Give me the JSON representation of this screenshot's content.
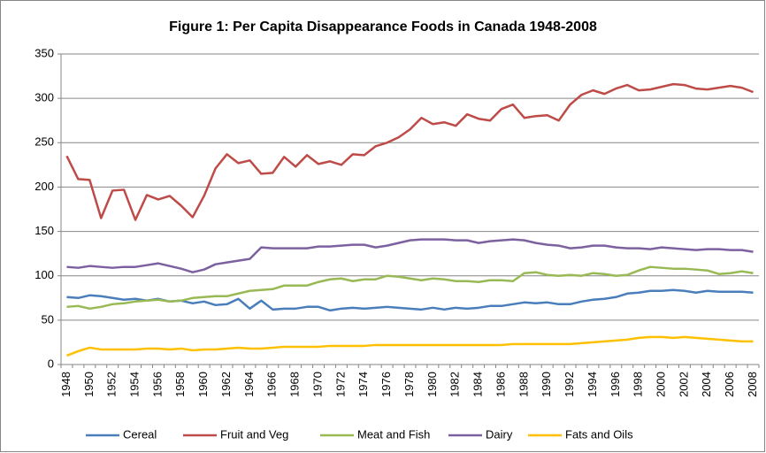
{
  "chart_data": {
    "type": "line",
    "title": "Figure 1: Per Capita Disappearance Foods in Canada 1948-2008",
    "categories": [
      "1948",
      null,
      "1950",
      null,
      "1952",
      null,
      "1954",
      null,
      "1956",
      null,
      "1958",
      null,
      "1960",
      null,
      "1962",
      null,
      "1964",
      null,
      "1966",
      null,
      "1968",
      null,
      "1970",
      null,
      "1972",
      null,
      "1974",
      null,
      "1976",
      null,
      "1978",
      null,
      "1980",
      null,
      "1982",
      null,
      "1984",
      null,
      "1986",
      null,
      "1988",
      null,
      "1990",
      null,
      "1992",
      null,
      "1994",
      null,
      "1996",
      null,
      "1998",
      null,
      "2000",
      null,
      "2002",
      null,
      "2004",
      null,
      "2006",
      null,
      "2008"
    ],
    "series": [
      {
        "name": "Cereal",
        "color": "#4a7ebb",
        "values": [
          76,
          75,
          78,
          77,
          75,
          73,
          74,
          72,
          74,
          71,
          72,
          69,
          71,
          67,
          68,
          74,
          63,
          72,
          62,
          63,
          63,
          65,
          65,
          61,
          63,
          64,
          63,
          64,
          65,
          64,
          63,
          62,
          64,
          62,
          64,
          63,
          64,
          66,
          66,
          68,
          70,
          69,
          70,
          68,
          68,
          71,
          73,
          74,
          76,
          80,
          81,
          83,
          83,
          84,
          83,
          81,
          83,
          82,
          82,
          82,
          81
        ]
      },
      {
        "name": "Fruit and Veg",
        "color": "#be4b48",
        "values": [
          235,
          209,
          208,
          165,
          196,
          197,
          163,
          191,
          186,
          190,
          179,
          166,
          190,
          221,
          237,
          227,
          230,
          215,
          216,
          234,
          223,
          236,
          226,
          229,
          225,
          237,
          236,
          246,
          250,
          256,
          265,
          278,
          271,
          273,
          269,
          282,
          277,
          275,
          288,
          293,
          278,
          280,
          281,
          275,
          293,
          304,
          309,
          305,
          311,
          315,
          309,
          310,
          313,
          316,
          315,
          311,
          310,
          312,
          314,
          312,
          307
        ]
      },
      {
        "name": "Meat and Fish",
        "color": "#98b954",
        "values": [
          65,
          66,
          63,
          65,
          68,
          69,
          71,
          72,
          73,
          71,
          72,
          75,
          76,
          77,
          77,
          80,
          83,
          84,
          85,
          89,
          89,
          89,
          93,
          96,
          97,
          94,
          96,
          96,
          100,
          99,
          97,
          95,
          97,
          96,
          94,
          94,
          93,
          95,
          95,
          94,
          103,
          104,
          101,
          100,
          101,
          100,
          103,
          102,
          100,
          101,
          106,
          110,
          109,
          108,
          108,
          107,
          106,
          102,
          103,
          105,
          103
        ]
      },
      {
        "name": "Dairy",
        "color": "#7d60a0",
        "values": [
          110,
          109,
          111,
          110,
          109,
          110,
          110,
          112,
          114,
          111,
          108,
          104,
          107,
          113,
          115,
          117,
          119,
          132,
          131,
          131,
          131,
          131,
          133,
          133,
          134,
          135,
          135,
          132,
          134,
          137,
          140,
          141,
          141,
          141,
          140,
          140,
          137,
          139,
          140,
          141,
          140,
          137,
          135,
          134,
          131,
          132,
          134,
          134,
          132,
          131,
          131,
          130,
          132,
          131,
          130,
          129,
          130,
          130,
          129,
          129,
          127
        ]
      },
      {
        "name": "Fats and Oils",
        "color": "#ffc000",
        "values": [
          10,
          15,
          19,
          17,
          17,
          17,
          17,
          18,
          18,
          17,
          18,
          16,
          17,
          17,
          18,
          19,
          18,
          18,
          19,
          20,
          20,
          20,
          20,
          21,
          21,
          21,
          21,
          22,
          22,
          22,
          22,
          22,
          22,
          22,
          22,
          22,
          22,
          22,
          22,
          23,
          23,
          23,
          23,
          23,
          23,
          24,
          25,
          26,
          27,
          28,
          30,
          31,
          31,
          30,
          31,
          30,
          29,
          28,
          27,
          26,
          26
        ]
      }
    ],
    "ylim": [
      0,
      350
    ],
    "yticks": [
      0,
      50,
      100,
      150,
      200,
      250,
      300,
      350
    ],
    "grid": true,
    "legend": "bottom"
  }
}
